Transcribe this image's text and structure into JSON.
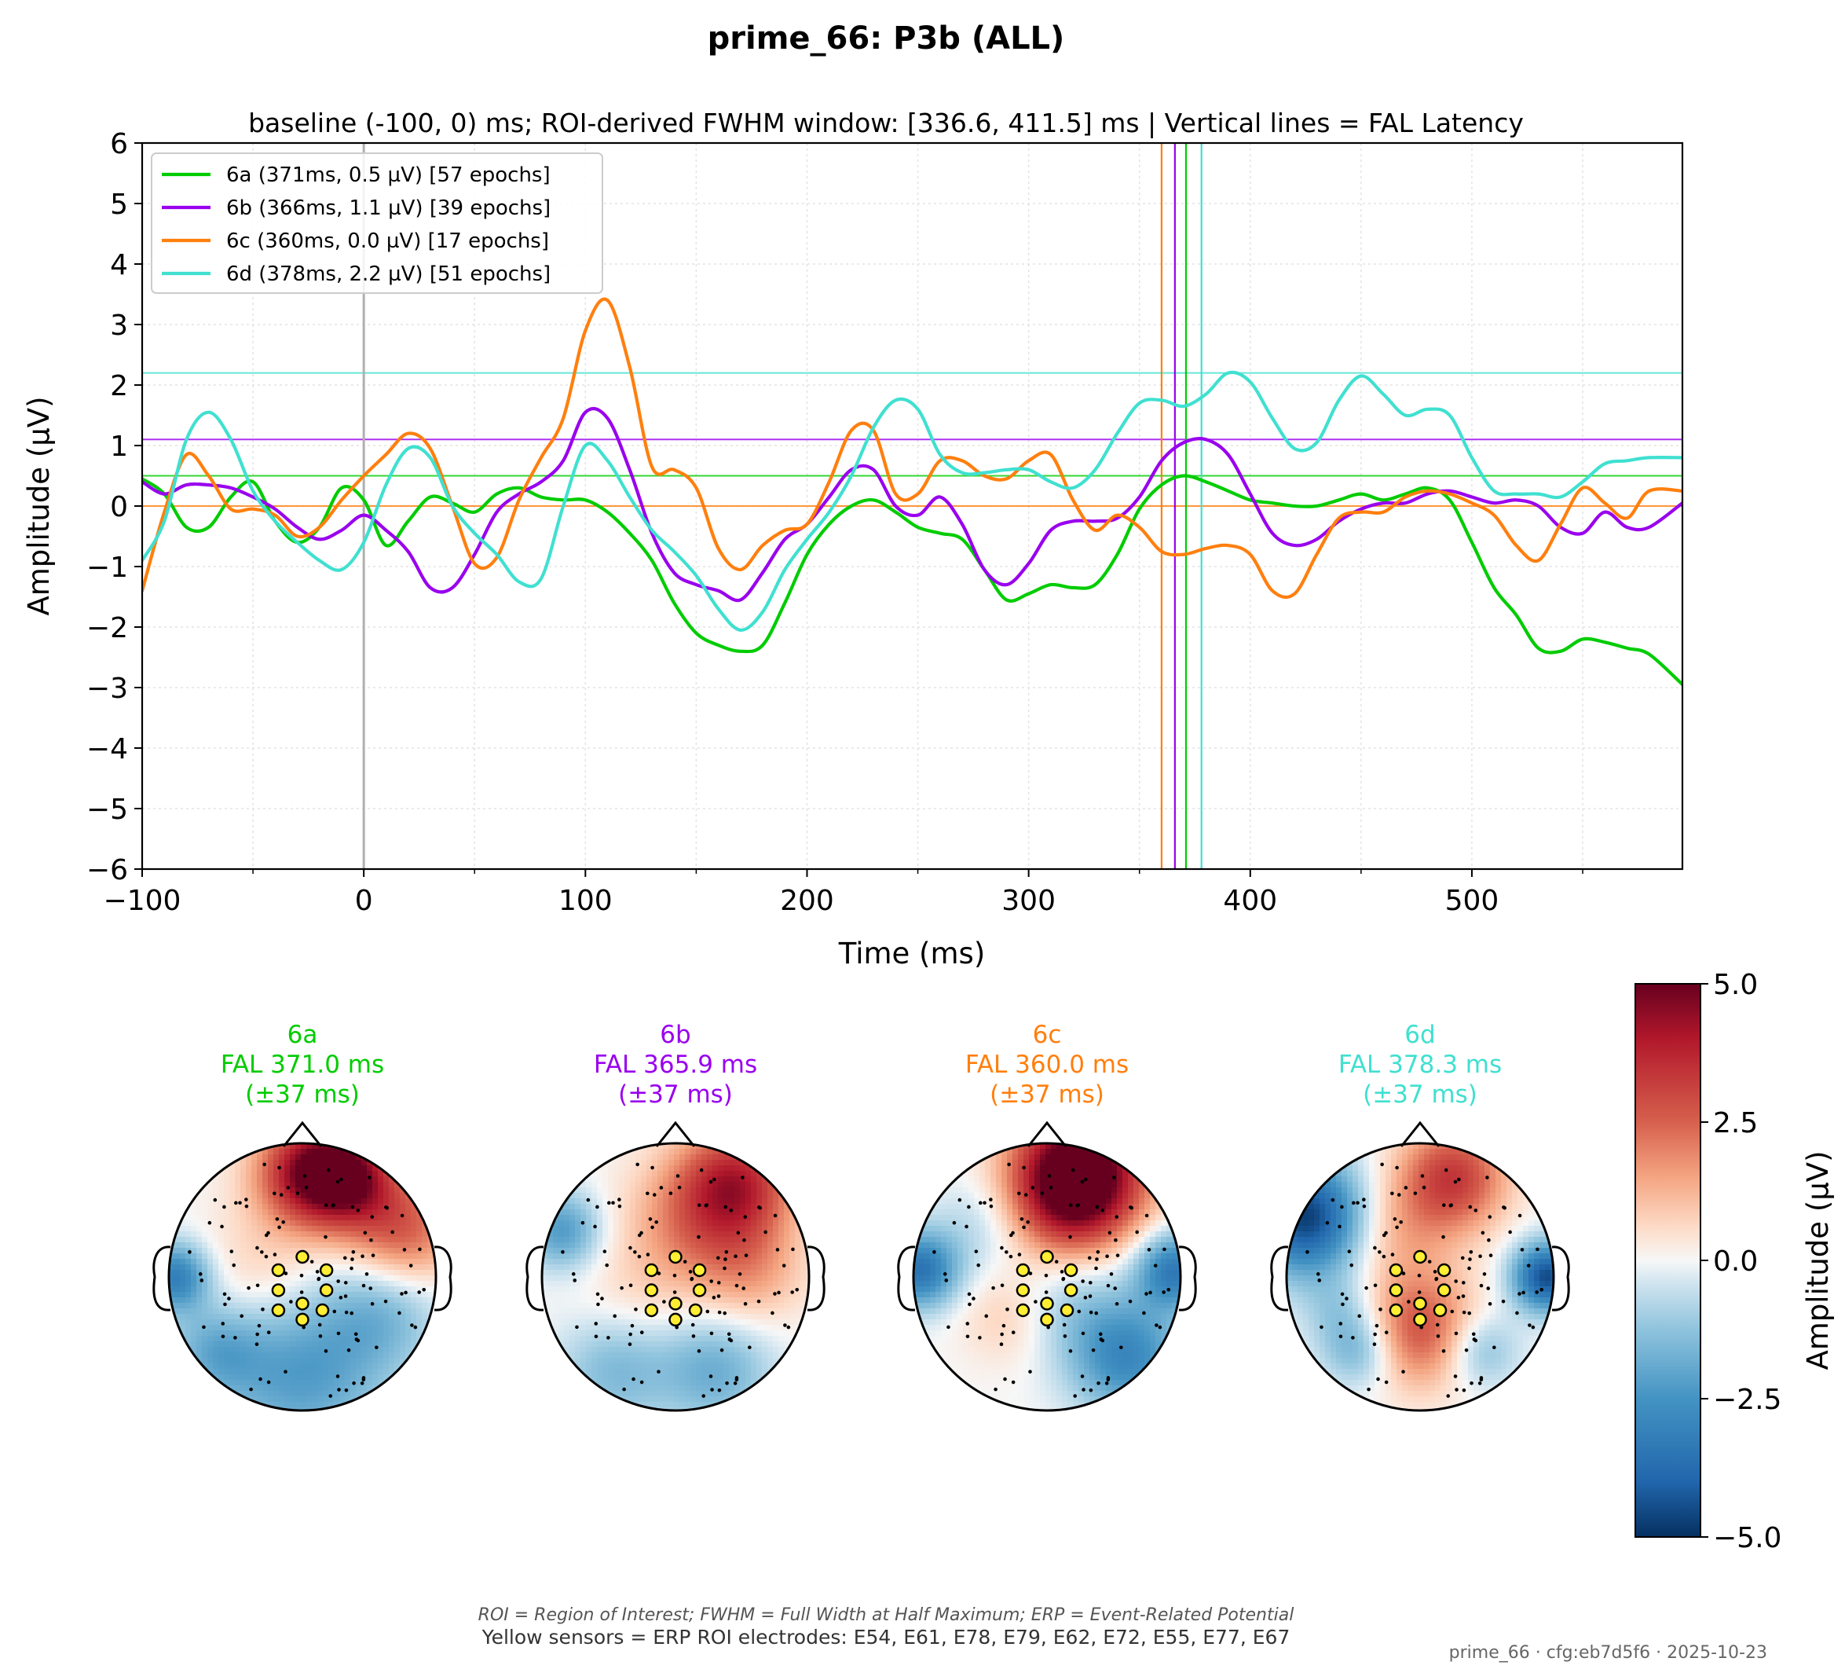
{
  "figure": {
    "suptitle": "prime_66: P3b (ALL)",
    "subtitle": "baseline (-100, 0) ms; ROI-derived FWHM window: [336.6, 411.5] ms | Vertical lines = FAL Latency",
    "footnote_italic": "ROI = Region of Interest; FWHM = Full Width at Half Maximum; ERP = Event-Related Potential",
    "footnote_sensors": "Yellow sensors = ERP ROI electrodes: E54, E61, E78, E79, E62, E72, E55, E77, E67",
    "stamp": "prime_66 · cfg:eb7d5f6 · 2025-10-23"
  },
  "chart_data": [
    {
      "type": "line",
      "xlabel": "Time (ms)",
      "ylabel": "Amplitude (µV)",
      "xlim": [
        -100,
        595
      ],
      "ylim": [
        -6,
        6
      ],
      "xticks": [
        -100,
        0,
        100,
        200,
        300,
        400,
        500
      ],
      "xtick_labels": [
        "−100",
        "0",
        "100",
        "200",
        "300",
        "400",
        "500"
      ],
      "yticks": [
        -6,
        -5,
        -4,
        -3,
        -2,
        -1,
        0,
        1,
        2,
        3,
        4,
        5,
        6
      ],
      "ytick_labels": [
        "−6",
        "−5",
        "−4",
        "−3",
        "−2",
        "−1",
        "0",
        "1",
        "2",
        "3",
        "4",
        "5",
        "6"
      ],
      "grid": true,
      "legend_position": "top-left",
      "zero_line_x": 0,
      "series": [
        {
          "name": "6a (371ms, 0.5 µV) [57 epochs]",
          "color": "#00cc00",
          "fal_latency": 371,
          "peak_amplitude": 0.5,
          "x": [
            -100,
            -90,
            -80,
            -70,
            -60,
            -50,
            -40,
            -30,
            -20,
            -10,
            0,
            10,
            20,
            30,
            40,
            50,
            60,
            70,
            80,
            90,
            100,
            110,
            120,
            130,
            140,
            150,
            160,
            170,
            180,
            190,
            200,
            210,
            220,
            230,
            240,
            250,
            260,
            270,
            280,
            290,
            300,
            310,
            320,
            330,
            340,
            350,
            360,
            370,
            380,
            390,
            400,
            410,
            420,
            430,
            440,
            450,
            460,
            470,
            480,
            490,
            500,
            510,
            520,
            530,
            540,
            550,
            560,
            570,
            580,
            595
          ],
          "y": [
            0.45,
            0.2,
            -0.35,
            -0.35,
            0.15,
            0.4,
            -0.25,
            -0.6,
            -0.35,
            0.3,
            0.1,
            -0.65,
            -0.25,
            0.15,
            0.05,
            -0.1,
            0.2,
            0.3,
            0.15,
            0.1,
            0.1,
            -0.1,
            -0.45,
            -0.9,
            -1.6,
            -2.1,
            -2.3,
            -2.4,
            -2.3,
            -1.6,
            -0.8,
            -0.3,
            0.0,
            0.1,
            -0.1,
            -0.35,
            -0.45,
            -0.55,
            -1.05,
            -1.55,
            -1.45,
            -1.3,
            -1.35,
            -1.3,
            -0.8,
            -0.05,
            0.35,
            0.5,
            0.4,
            0.25,
            0.1,
            0.05,
            0.0,
            0.0,
            0.1,
            0.2,
            0.1,
            0.2,
            0.3,
            0.1,
            -0.6,
            -1.35,
            -1.8,
            -2.35,
            -2.4,
            -2.2,
            -2.25,
            -2.35,
            -2.45,
            -2.95
          ]
        },
        {
          "name": "6b (366ms, 1.1 µV) [39 epochs]",
          "color": "#9900ee",
          "fal_latency": 366,
          "peak_amplitude": 1.1,
          "x": [
            -100,
            -90,
            -80,
            -70,
            -60,
            -50,
            -40,
            -30,
            -20,
            -10,
            0,
            10,
            20,
            30,
            40,
            50,
            60,
            70,
            80,
            90,
            100,
            110,
            120,
            130,
            140,
            150,
            160,
            170,
            180,
            190,
            200,
            210,
            220,
            230,
            240,
            250,
            260,
            270,
            280,
            290,
            300,
            310,
            320,
            330,
            340,
            350,
            360,
            370,
            380,
            390,
            400,
            410,
            420,
            430,
            440,
            450,
            460,
            470,
            480,
            490,
            500,
            510,
            520,
            530,
            540,
            550,
            560,
            570,
            580,
            595
          ],
          "y": [
            0.4,
            0.2,
            0.35,
            0.35,
            0.3,
            0.15,
            -0.05,
            -0.35,
            -0.55,
            -0.4,
            -0.15,
            -0.4,
            -0.75,
            -1.35,
            -1.35,
            -0.8,
            -0.1,
            0.2,
            0.4,
            0.75,
            1.55,
            1.45,
            0.6,
            -0.45,
            -1.1,
            -1.3,
            -1.4,
            -1.55,
            -1.1,
            -0.55,
            -0.3,
            0.15,
            0.6,
            0.6,
            0.0,
            -0.15,
            0.15,
            -0.3,
            -1.05,
            -1.3,
            -0.95,
            -0.4,
            -0.25,
            -0.25,
            -0.2,
            0.15,
            0.75,
            1.05,
            1.1,
            0.85,
            0.2,
            -0.45,
            -0.65,
            -0.55,
            -0.25,
            -0.05,
            0.05,
            0.05,
            0.2,
            0.25,
            0.15,
            0.05,
            0.1,
            0.0,
            -0.35,
            -0.45,
            -0.1,
            -0.35,
            -0.35,
            0.05
          ]
        },
        {
          "name": "6c (360ms, 0.0 µV) [17 epochs]",
          "color": "#ff7f0e",
          "fal_latency": 360,
          "peak_amplitude": 0.0,
          "x": [
            -100,
            -90,
            -80,
            -70,
            -60,
            -50,
            -40,
            -30,
            -20,
            -10,
            0,
            10,
            20,
            30,
            40,
            50,
            60,
            70,
            80,
            90,
            100,
            110,
            120,
            130,
            140,
            150,
            160,
            170,
            180,
            190,
            200,
            210,
            220,
            230,
            240,
            250,
            260,
            270,
            280,
            290,
            300,
            310,
            320,
            330,
            340,
            350,
            360,
            370,
            380,
            390,
            400,
            410,
            420,
            430,
            440,
            450,
            460,
            470,
            480,
            490,
            500,
            510,
            520,
            530,
            540,
            550,
            560,
            570,
            580,
            595
          ],
          "y": [
            -1.4,
            -0.1,
            0.85,
            0.5,
            -0.05,
            -0.05,
            -0.15,
            -0.5,
            -0.35,
            0.1,
            0.5,
            0.85,
            1.2,
            0.95,
            0.0,
            -0.95,
            -0.85,
            0.1,
            0.8,
            1.45,
            2.9,
            3.4,
            2.3,
            0.65,
            0.6,
            0.3,
            -0.7,
            -1.05,
            -0.65,
            -0.4,
            -0.3,
            0.4,
            1.25,
            1.25,
            0.2,
            0.2,
            0.75,
            0.75,
            0.5,
            0.45,
            0.75,
            0.85,
            0.1,
            -0.4,
            -0.15,
            -0.35,
            -0.75,
            -0.8,
            -0.7,
            -0.65,
            -0.8,
            -1.4,
            -1.45,
            -0.8,
            -0.2,
            -0.1,
            -0.1,
            0.15,
            0.25,
            0.2,
            0.05,
            -0.15,
            -0.65,
            -0.9,
            -0.3,
            0.3,
            0.05,
            -0.2,
            0.25,
            0.25
          ]
        },
        {
          "name": "6d (378ms, 2.2 µV) [51 epochs]",
          "color": "#40e0d0",
          "fal_latency": 378,
          "peak_amplitude": 2.2,
          "x": [
            -100,
            -90,
            -80,
            -70,
            -60,
            -50,
            -40,
            -30,
            -20,
            -10,
            0,
            10,
            20,
            30,
            40,
            50,
            60,
            70,
            80,
            90,
            100,
            110,
            120,
            130,
            140,
            150,
            160,
            170,
            180,
            190,
            200,
            210,
            220,
            230,
            240,
            250,
            260,
            270,
            280,
            290,
            300,
            310,
            320,
            330,
            340,
            350,
            360,
            370,
            380,
            390,
            400,
            410,
            420,
            430,
            440,
            450,
            460,
            470,
            480,
            490,
            500,
            510,
            520,
            530,
            540,
            550,
            560,
            570,
            580,
            595
          ],
          "y": [
            -0.9,
            -0.25,
            1.1,
            1.55,
            1.1,
            0.25,
            -0.25,
            -0.6,
            -0.9,
            -1.05,
            -0.6,
            0.35,
            0.95,
            0.8,
            0.0,
            -0.45,
            -0.8,
            -1.25,
            -1.2,
            0.0,
            1.0,
            0.75,
            0.15,
            -0.4,
            -0.75,
            -1.15,
            -1.7,
            -2.05,
            -1.75,
            -1.05,
            -0.55,
            -0.1,
            0.5,
            1.3,
            1.75,
            1.6,
            0.85,
            0.55,
            0.55,
            0.6,
            0.6,
            0.4,
            0.3,
            0.6,
            1.2,
            1.7,
            1.75,
            1.65,
            1.85,
            2.2,
            2.05,
            1.45,
            0.95,
            1.05,
            1.75,
            2.15,
            1.85,
            1.5,
            1.6,
            1.5,
            0.8,
            0.25,
            0.2,
            0.2,
            0.15,
            0.4,
            0.7,
            0.75,
            0.8,
            0.8
          ]
        }
      ]
    },
    {
      "type": "heatmap",
      "subtype": "topomap",
      "colorbar_label": "Amplitude (µV)",
      "colormap": "RdBu_r",
      "clim": [
        -5.0,
        5.0
      ],
      "colorbar_ticks": [
        5.0,
        2.5,
        0.0,
        -2.5,
        -5.0
      ],
      "colorbar_tick_labels": [
        "5.0",
        "2.5",
        "0.0",
        "−2.5",
        "−5.0"
      ],
      "roi_sensor_color": "#ffee33",
      "panels": [
        {
          "condition": "6a",
          "label_fal": "FAL 371.0 ms",
          "label_pm": "(±37 ms)",
          "color": "#00cc00",
          "blobs": [
            [
              0.05,
              -0.78,
              0.28,
              4.2
            ],
            [
              0.35,
              -0.75,
              0.25,
              3.5
            ],
            [
              0.75,
              -0.35,
              0.3,
              2.6
            ],
            [
              -0.95,
              0.0,
              0.18,
              -3.2
            ],
            [
              -0.3,
              0.0,
              0.35,
              0.9
            ],
            [
              0.0,
              0.7,
              0.45,
              -2.3
            ],
            [
              0.6,
              0.25,
              0.3,
              -1.4
            ],
            [
              -0.65,
              0.55,
              0.25,
              -1.6
            ]
          ]
        },
        {
          "condition": "6b",
          "label_fal": "FAL 365.9 ms",
          "label_pm": "(±37 ms)",
          "color": "#9900ee",
          "blobs": [
            [
              0.45,
              -0.7,
              0.3,
              3.6
            ],
            [
              0.1,
              -0.4,
              0.35,
              1.6
            ],
            [
              0.55,
              -0.05,
              0.3,
              1.4
            ],
            [
              -0.85,
              -0.35,
              0.2,
              -2.3
            ],
            [
              0.3,
              0.7,
              0.3,
              -1.8
            ],
            [
              -0.45,
              0.7,
              0.3,
              -1.5
            ],
            [
              -0.3,
              0.15,
              0.3,
              0.5
            ]
          ]
        },
        {
          "condition": "6c",
          "label_fal": "FAL 360.0 ms",
          "label_pm": "(±37 ms)",
          "color": "#ff7f0e",
          "blobs": [
            [
              0.25,
              -0.8,
              0.35,
              5.5
            ],
            [
              0.15,
              -0.55,
              0.3,
              2.0
            ],
            [
              -0.95,
              -0.05,
              0.2,
              -3.5
            ],
            [
              0.95,
              -0.05,
              0.2,
              -3.3
            ],
            [
              0.6,
              0.6,
              0.3,
              -2.8
            ],
            [
              -0.3,
              0.3,
              0.25,
              0.8
            ],
            [
              0.2,
              0.2,
              0.3,
              -0.9
            ],
            [
              -0.5,
              -0.4,
              0.25,
              -0.8
            ]
          ]
        },
        {
          "condition": "6d",
          "label_fal": "FAL 378.3 ms",
          "label_pm": "(±37 ms)",
          "color": "#40e0d0",
          "blobs": [
            [
              -0.85,
              -0.45,
              0.3,
              -4.8
            ],
            [
              0.95,
              0.0,
              0.18,
              -4.5
            ],
            [
              0.25,
              -0.75,
              0.28,
              3.2
            ],
            [
              0.0,
              0.4,
              0.3,
              2.8
            ],
            [
              -0.15,
              -0.35,
              0.3,
              1.2
            ],
            [
              -0.45,
              0.55,
              0.2,
              -1.8
            ],
            [
              0.45,
              0.55,
              0.2,
              -1.6
            ],
            [
              -0.6,
              0.25,
              0.2,
              -1.0
            ]
          ]
        }
      ],
      "roi_sensors_layout": [
        [
          0.0,
          -0.15
        ],
        [
          -0.18,
          -0.05
        ],
        [
          0.18,
          -0.05
        ],
        [
          -0.18,
          0.1
        ],
        [
          0.18,
          0.1
        ],
        [
          -0.18,
          0.25
        ],
        [
          0.0,
          0.2
        ],
        [
          0.15,
          0.25
        ],
        [
          0.0,
          0.32
        ]
      ]
    }
  ]
}
